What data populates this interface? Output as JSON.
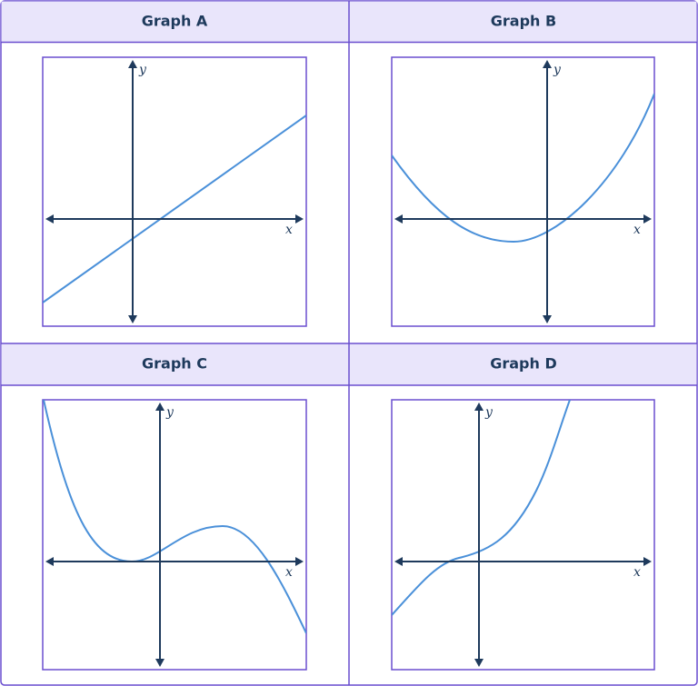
{
  "panels": [
    {
      "title": "Graph A",
      "x_label": "x",
      "y_label": "y"
    },
    {
      "title": "Graph B",
      "x_label": "x",
      "y_label": "y"
    },
    {
      "title": "Graph C",
      "x_label": "x",
      "y_label": "y"
    },
    {
      "title": "Graph D",
      "x_label": "x",
      "y_label": "y"
    }
  ]
}
